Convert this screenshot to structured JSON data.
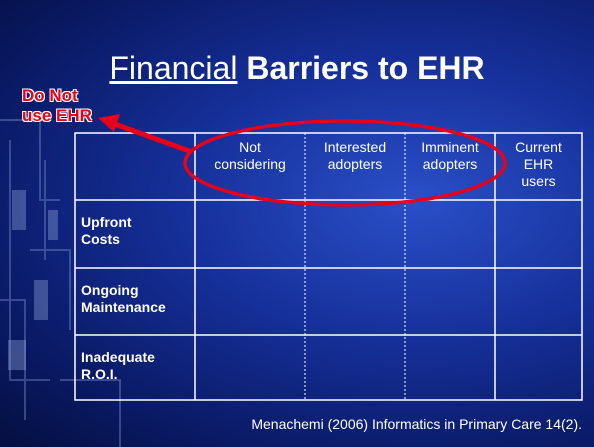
{
  "title": {
    "underlined": "Financial",
    "bold": "Barriers to EHR"
  },
  "callout": {
    "lines": [
      "Do Not",
      "use EHR"
    ]
  },
  "table": {
    "header": [
      {
        "lines": [
          "Not",
          "considering"
        ]
      },
      {
        "lines": [
          "Interested",
          "adopters"
        ]
      },
      {
        "lines": [
          "Imminent",
          "adopters"
        ]
      },
      {
        "lines": [
          "Current",
          "EHR",
          "users"
        ]
      }
    ],
    "rows": [
      {
        "lines": [
          "Upfront",
          "Costs"
        ]
      },
      {
        "lines": [
          "Ongoing",
          "Maintenance"
        ]
      },
      {
        "lines": [
          "Inadequate",
          "R.O.I."
        ]
      }
    ]
  },
  "citation": "Menachemi (2006) Informatics in Primary Care 14(2)."
}
